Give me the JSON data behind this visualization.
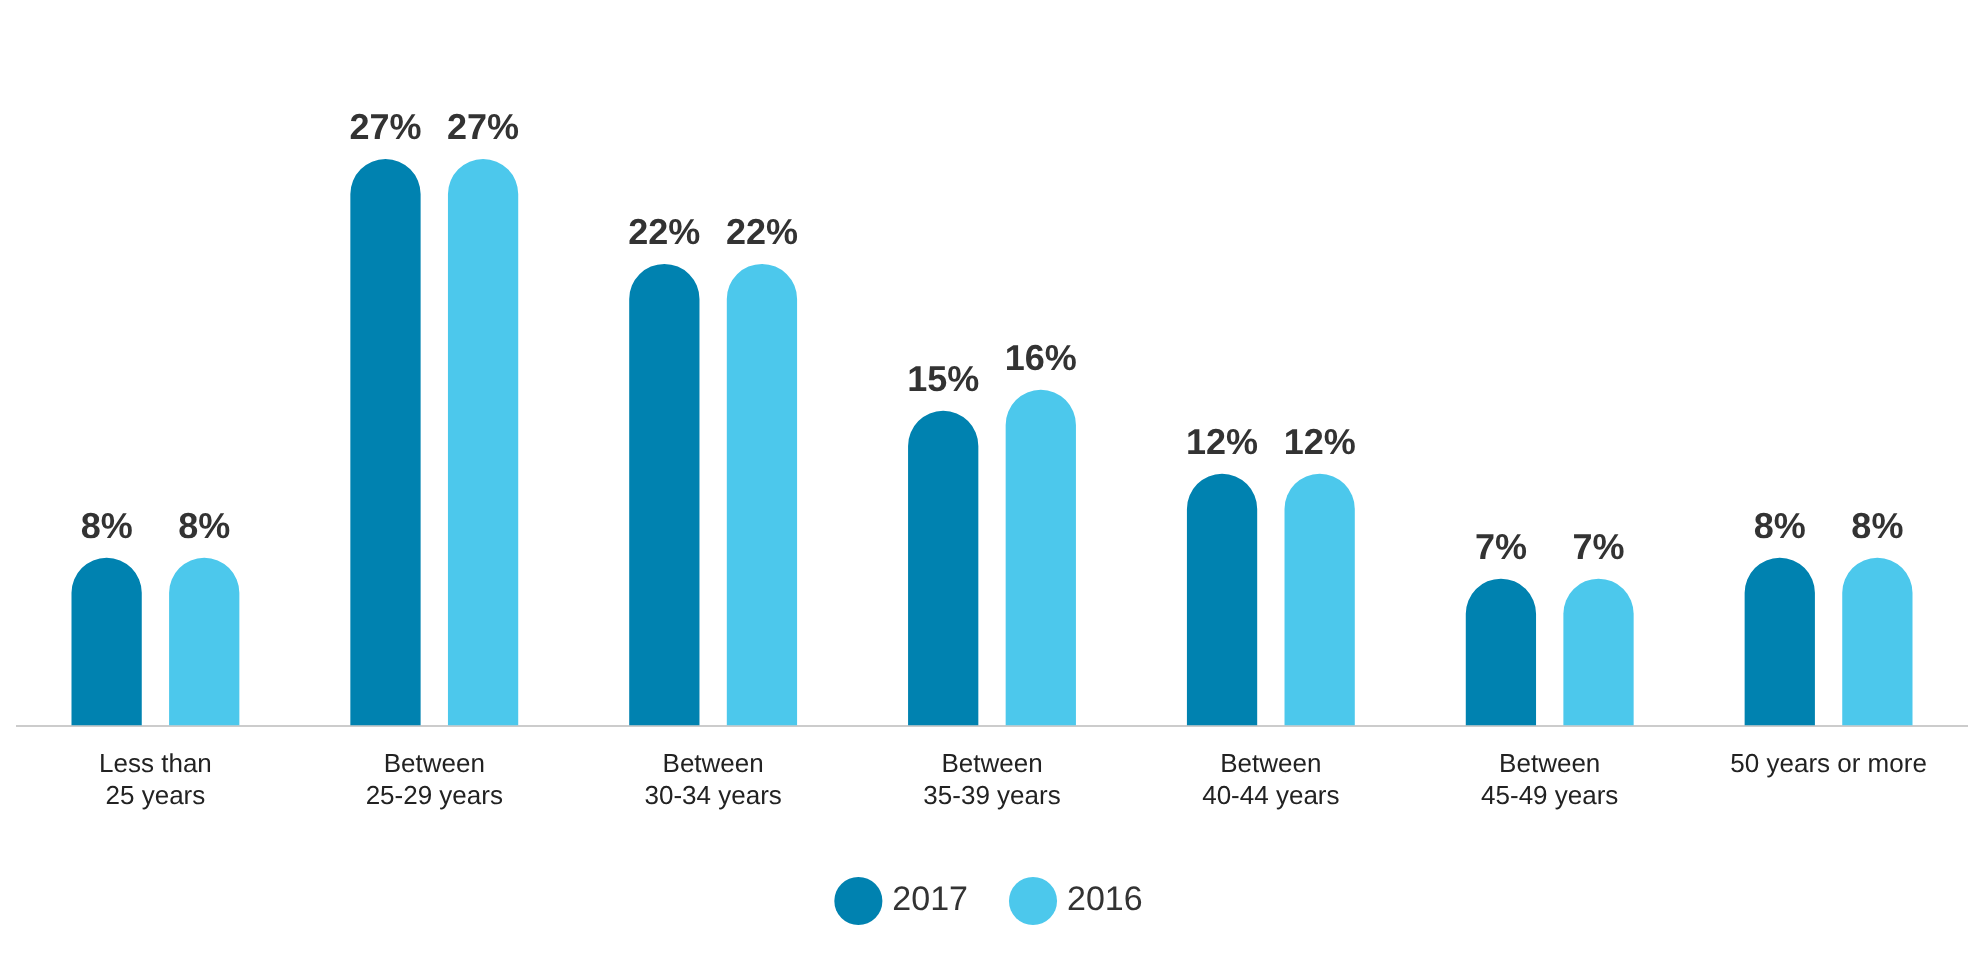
{
  "chart_data": {
    "type": "bar",
    "categories": [
      "Less than 25 years",
      "Between 25-29 years",
      "Between 30-34 years",
      "Between 35-39 years",
      "Between 40-44 years",
      "Between 45-49 years",
      "50 years or more"
    ],
    "series": [
      {
        "name": "2017",
        "color": "#0082b0",
        "values": [
          8,
          27,
          22,
          15,
          12,
          7,
          8
        ],
        "value_labels": [
          "8%",
          "27%",
          "22%",
          "15%",
          "12%",
          "7%",
          "8%"
        ]
      },
      {
        "name": "2016",
        "color": "#4cc8ec",
        "values": [
          8,
          27,
          22,
          16,
          12,
          7,
          8
        ],
        "value_labels": [
          "8%",
          "27%",
          "22%",
          "16%",
          "12%",
          "7%",
          "8%"
        ]
      }
    ],
    "legend": "bottom",
    "grid": false
  }
}
